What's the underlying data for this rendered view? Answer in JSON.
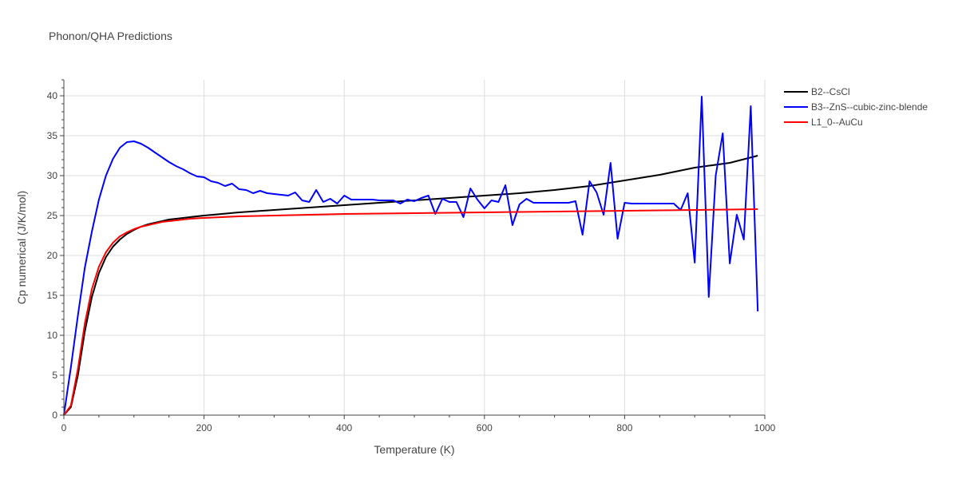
{
  "chart_data": {
    "type": "line",
    "title": "Phonon/QHA Predictions",
    "xlabel": "Temperature (K)",
    "ylabel": "Cp numerical (J/K/mol)",
    "xlim": [
      0,
      1000
    ],
    "ylim": [
      0,
      42
    ],
    "xticks": [
      0,
      200,
      400,
      600,
      800,
      1000
    ],
    "yticks": [
      0,
      5,
      10,
      15,
      20,
      25,
      30,
      35,
      40
    ],
    "grid": true,
    "legend_position": "top-right",
    "series": [
      {
        "name": "B2--CsCl",
        "color": "#000000",
        "x": [
          0,
          10,
          20,
          30,
          40,
          50,
          60,
          70,
          80,
          90,
          100,
          110,
          120,
          130,
          140,
          150,
          160,
          170,
          180,
          200,
          250,
          300,
          350,
          400,
          450,
          500,
          550,
          600,
          650,
          700,
          750,
          800,
          850,
          900,
          950,
          990
        ],
        "values": [
          0,
          1.0,
          5.0,
          10.5,
          14.8,
          17.8,
          19.8,
          21.1,
          22.0,
          22.7,
          23.2,
          23.6,
          23.9,
          24.1,
          24.3,
          24.5,
          24.6,
          24.7,
          24.8,
          25.0,
          25.4,
          25.7,
          26.0,
          26.3,
          26.6,
          26.9,
          27.2,
          27.5,
          27.8,
          28.2,
          28.7,
          29.4,
          30.1,
          31.0,
          31.6,
          32.5
        ]
      },
      {
        "name": "B3--ZnS--cubic-zinc-blende",
        "color": "#0000ff",
        "x": [
          0,
          10,
          20,
          30,
          40,
          50,
          60,
          70,
          80,
          90,
          100,
          110,
          120,
          130,
          140,
          150,
          160,
          170,
          180,
          190,
          200,
          210,
          220,
          230,
          240,
          250,
          260,
          270,
          280,
          290,
          300,
          310,
          320,
          330,
          340,
          350,
          360,
          370,
          380,
          390,
          400,
          410,
          420,
          430,
          440,
          450,
          460,
          470,
          480,
          490,
          500,
          510,
          520,
          530,
          540,
          550,
          560,
          570,
          580,
          590,
          600,
          610,
          620,
          630,
          640,
          650,
          660,
          670,
          680,
          690,
          700,
          710,
          720,
          730,
          740,
          750,
          760,
          770,
          780,
          790,
          800,
          810,
          820,
          830,
          840,
          850,
          860,
          870,
          880,
          890,
          900,
          910,
          920,
          930,
          940,
          950,
          960,
          970,
          980,
          990
        ],
        "values": [
          0,
          6.0,
          12.5,
          18.5,
          23.0,
          27.0,
          30.0,
          32.1,
          33.5,
          34.2,
          34.3,
          34.0,
          33.5,
          32.9,
          32.3,
          31.7,
          31.2,
          30.8,
          30.3,
          29.9,
          29.8,
          29.3,
          29.1,
          28.7,
          29.0,
          28.3,
          28.2,
          27.8,
          28.1,
          27.8,
          27.7,
          27.6,
          27.5,
          27.9,
          26.9,
          26.7,
          28.2,
          26.7,
          27.1,
          26.5,
          27.5,
          27.0,
          27.0,
          27.0,
          27.0,
          26.9,
          26.9,
          26.9,
          26.5,
          27.0,
          26.8,
          27.2,
          27.5,
          25.2,
          27.1,
          26.7,
          26.7,
          24.8,
          28.4,
          27.0,
          25.9,
          26.9,
          26.7,
          28.8,
          23.8,
          26.4,
          27.1,
          26.6,
          26.6,
          26.6,
          26.6,
          26.6,
          26.6,
          26.8,
          22.6,
          29.3,
          27.9,
          25.1,
          31.6,
          22.1,
          26.6,
          26.5,
          26.5,
          26.5,
          26.5,
          26.5,
          26.5,
          26.5,
          25.7,
          27.8,
          19.1,
          39.9,
          14.8,
          30.0,
          35.3,
          19.0,
          25.1,
          22.0,
          38.7,
          13.0
        ]
      },
      {
        "name": "L1_0--AuCu",
        "color": "#ff0000",
        "x": [
          0,
          10,
          20,
          30,
          40,
          50,
          60,
          70,
          80,
          90,
          100,
          110,
          120,
          130,
          140,
          150,
          160,
          170,
          180,
          200,
          250,
          300,
          350,
          400,
          450,
          500,
          550,
          600,
          650,
          700,
          750,
          800,
          850,
          900,
          950,
          990
        ],
        "values": [
          0,
          1.2,
          5.8,
          11.5,
          15.8,
          18.6,
          20.4,
          21.6,
          22.4,
          22.9,
          23.3,
          23.6,
          23.8,
          24.0,
          24.2,
          24.3,
          24.4,
          24.5,
          24.6,
          24.7,
          24.9,
          25.0,
          25.1,
          25.2,
          25.25,
          25.3,
          25.35,
          25.4,
          25.45,
          25.5,
          25.55,
          25.6,
          25.65,
          25.7,
          25.75,
          25.8
        ]
      }
    ]
  }
}
